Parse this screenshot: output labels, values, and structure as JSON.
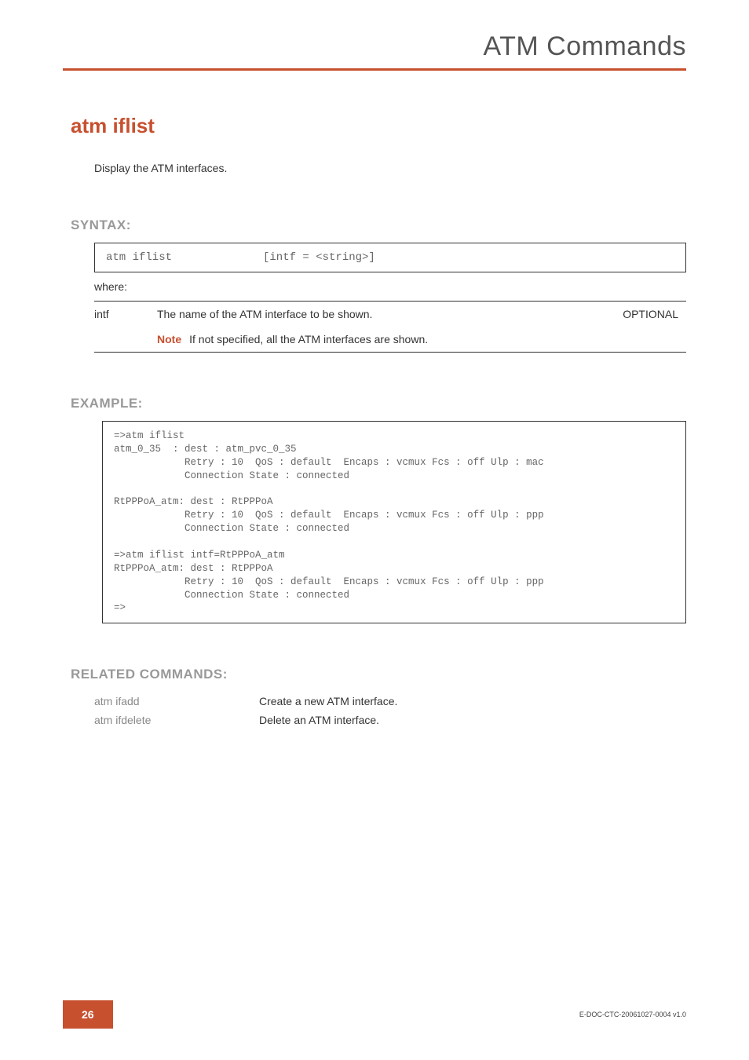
{
  "header": {
    "title": "ATM Commands"
  },
  "command": {
    "title": "atm iflist",
    "description": "Display the ATM interfaces."
  },
  "syntax": {
    "heading": "SYNTAX:",
    "cmd": "atm iflist",
    "args": "[intf = <string>]",
    "where": "where:",
    "params": [
      {
        "name": "intf",
        "desc": "The name of the ATM interface to be shown.",
        "optional": "OPTIONAL",
        "note_label": "Note",
        "note_text": "If not specified, all the ATM interfaces are shown."
      }
    ]
  },
  "example": {
    "heading": "EXAMPLE:",
    "text": "=>atm iflist\natm_0_35  : dest : atm_pvc_0_35\n            Retry : 10  QoS : default  Encaps : vcmux Fcs : off Ulp : mac\n            Connection State : connected\n\nRtPPPoA_atm: dest : RtPPPoA\n            Retry : 10  QoS : default  Encaps : vcmux Fcs : off Ulp : ppp\n            Connection State : connected\n\n=>atm iflist intf=RtPPPoA_atm\nRtPPPoA_atm: dest : RtPPPoA\n            Retry : 10  QoS : default  Encaps : vcmux Fcs : off Ulp : ppp\n            Connection State : connected\n=>"
  },
  "related": {
    "heading": "RELATED COMMANDS:",
    "items": [
      {
        "cmd": "atm ifadd",
        "desc": "Create a new ATM interface."
      },
      {
        "cmd": "atm ifdelete",
        "desc": "Delete an ATM interface."
      }
    ]
  },
  "footer": {
    "page": "26",
    "doc_id": "E-DOC-CTC-20061027-0004 v1.0"
  },
  "colors": {
    "accent": "#c7502f",
    "heading_gray": "#999999",
    "mono_gray": "#666666",
    "text": "#333333"
  }
}
